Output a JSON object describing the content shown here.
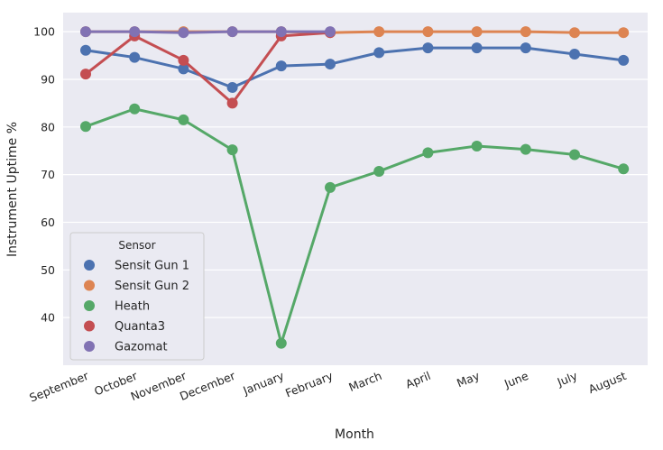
{
  "chart_data": {
    "type": "line",
    "xlabel": "Month",
    "ylabel": "Instrument Uptime %",
    "categories": [
      "September",
      "October",
      "November",
      "December",
      "January",
      "February",
      "March",
      "April",
      "May",
      "June",
      "July",
      "August"
    ],
    "ylim": [
      30,
      104
    ],
    "yticks": [
      40,
      50,
      60,
      70,
      80,
      90,
      100
    ],
    "grid": true,
    "legend_title": "Sensor",
    "legend_position": "lower-left",
    "series": [
      {
        "name": "Sensit Gun 1",
        "color": "#4C72B0",
        "values": [
          96.1,
          94.6,
          92.2,
          88.3,
          92.8,
          93.2,
          95.6,
          96.6,
          96.6,
          96.6,
          95.3,
          94.0
        ]
      },
      {
        "name": "Sensit Gun 2",
        "color": "#DD8452",
        "values": [
          100,
          100,
          100,
          100,
          100,
          99.8,
          100,
          100,
          100,
          100,
          99.8,
          99.8
        ]
      },
      {
        "name": "Heath",
        "color": "#55A868",
        "values": [
          80.1,
          83.8,
          81.5,
          75.2,
          34.6,
          67.3,
          70.7,
          74.6,
          76.0,
          75.3,
          74.2,
          71.2
        ]
      },
      {
        "name": "Quanta3",
        "color": "#C44E52",
        "values": [
          91.1,
          99.1,
          94.0,
          85.0,
          99.1,
          99.8,
          null,
          null,
          null,
          null,
          null,
          null
        ]
      },
      {
        "name": "Gazomat",
        "color": "#8172B3",
        "values": [
          100,
          100,
          99.8,
          100,
          100,
          100,
          null,
          null,
          null,
          null,
          null,
          null
        ]
      }
    ]
  }
}
